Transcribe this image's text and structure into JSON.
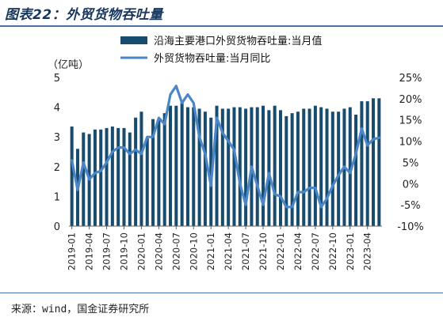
{
  "figure": {
    "title": "图表22：外贸货物吞吐量",
    "source": "来源：wind，国金证券研究所"
  },
  "colors": {
    "bar": "#184c6f",
    "line": "#4a86c8",
    "rule": "#4a6fa5",
    "title": "#17375e"
  },
  "chart_data": {
    "type": "bar",
    "y_unit_label": "（亿吨）",
    "legend": {
      "placement": "top-right"
    },
    "grid": false,
    "ylim": [
      0,
      5
    ],
    "y2lim": [
      -10,
      25
    ],
    "yticks": [
      "0",
      "1",
      "2",
      "3",
      "4",
      "5"
    ],
    "y2ticks": [
      "-10%",
      "-5%",
      "0%",
      "5%",
      "10%",
      "15%",
      "20%",
      "25%"
    ],
    "x_tick_labels": [
      "2019-01",
      "2019-04",
      "2019-07",
      "2019-10",
      "2020-01",
      "2020-04",
      "2020-07",
      "2020-10",
      "2021-01",
      "2021-04",
      "2021-07",
      "2021-10",
      "2022-01",
      "2022-04",
      "2022-07",
      "2022-10",
      "2023-01",
      "2023-04"
    ],
    "categories": [
      "2019-01",
      "2019-02",
      "2019-03",
      "2019-04",
      "2019-05",
      "2019-06",
      "2019-07",
      "2019-08",
      "2019-09",
      "2019-10",
      "2019-11",
      "2019-12",
      "2020-01",
      "2020-02",
      "2020-03",
      "2020-04",
      "2020-05",
      "2020-06",
      "2020-07",
      "2020-08",
      "2020-09",
      "2020-10",
      "2020-11",
      "2020-12",
      "2021-01",
      "2021-02",
      "2021-03",
      "2021-04",
      "2021-05",
      "2021-06",
      "2021-07",
      "2021-08",
      "2021-09",
      "2021-10",
      "2021-11",
      "2021-12",
      "2022-01",
      "2022-02",
      "2022-03",
      "2022-04",
      "2022-05",
      "2022-06",
      "2022-07",
      "2022-08",
      "2022-09",
      "2022-10",
      "2022-11",
      "2022-12",
      "2023-01",
      "2023-02",
      "2023-03",
      "2023-04",
      "2023-05",
      "2023-06"
    ],
    "series": [
      {
        "name": "沿海主要港口外贸货物吞吐量:当月值",
        "type": "bar",
        "axis": "left",
        "values": [
          3.35,
          2.6,
          3.15,
          3.1,
          3.25,
          3.25,
          3.3,
          3.35,
          3.3,
          3.3,
          3.15,
          3.65,
          3.85,
          2.95,
          3.6,
          3.6,
          3.8,
          4.05,
          4.05,
          4.15,
          4.0,
          4.0,
          3.95,
          3.85,
          3.65,
          4.05,
          3.95,
          3.95,
          4.0,
          4.0,
          3.95,
          4.0,
          4.0,
          4.05,
          3.9,
          4.05,
          3.9,
          3.7,
          3.8,
          3.85,
          3.95,
          3.95,
          4.05,
          4.0,
          3.95,
          3.85,
          3.85,
          3.95,
          4.0,
          3.75,
          4.2,
          4.2,
          4.3,
          4.3
        ]
      },
      {
        "name": "外贸货物吞吐量:当月同比",
        "type": "line",
        "axis": "right",
        "values": [
          5.5,
          -1.5,
          5.0,
          1.0,
          2.5,
          3.0,
          5.0,
          7.5,
          8.5,
          8.5,
          7.0,
          8.0,
          7.0,
          11.0,
          11.0,
          15.5,
          14.0,
          21.0,
          23.0,
          19.0,
          21.0,
          19.0,
          11.0,
          7.0,
          -0.5,
          15.5,
          12.0,
          10.0,
          8.0,
          0.0,
          -5.0,
          4.0,
          -0.5,
          -5.0,
          2.5,
          -2.5,
          -3.0,
          -5.5,
          -5.5,
          -2.0,
          -2.0,
          -1.0,
          -1.0,
          -5.5,
          -3.5,
          -0.5,
          2.0,
          4.0,
          2.5,
          7.0,
          13.0,
          9.0,
          10.5,
          10.8
        ]
      }
    ]
  }
}
